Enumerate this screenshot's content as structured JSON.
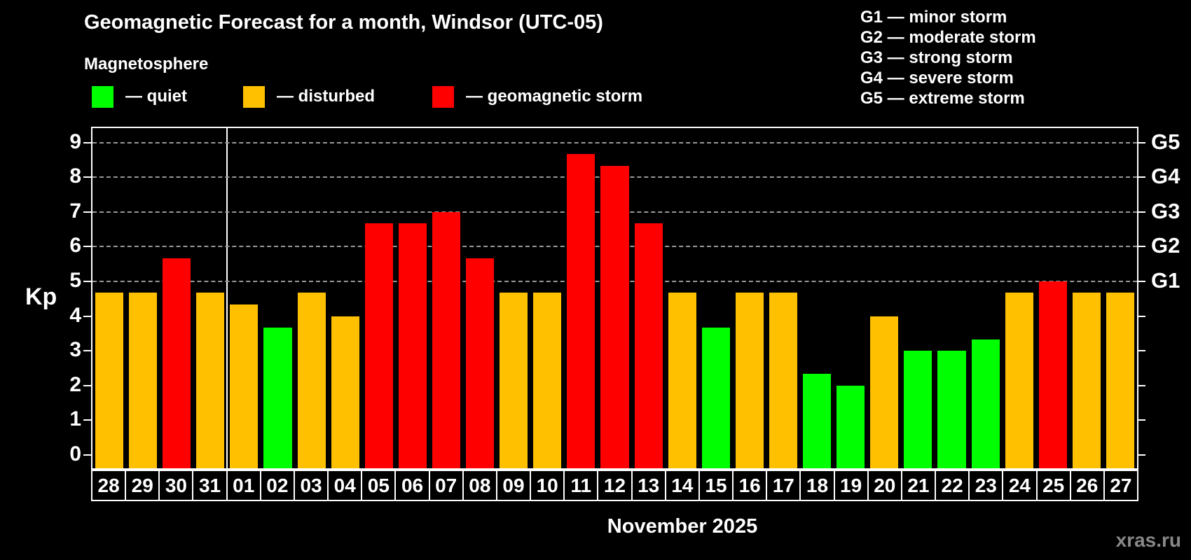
{
  "title": "Geomagnetic Forecast for a month, Windsor (UTC-05)",
  "subtitle": "Magnetosphere",
  "legend": {
    "quiet_label": "— quiet",
    "disturbed_label": "— disturbed",
    "storm_label": "— geomagnetic storm"
  },
  "storm_scale_legend": [
    "G1 — minor storm",
    "G2 — moderate storm",
    "G3 — strong storm",
    "G4 — severe storm",
    "G5 — extreme storm"
  ],
  "axis": {
    "y_label": "Kp",
    "y_ticks": [
      "0",
      "1",
      "2",
      "3",
      "4",
      "5",
      "6",
      "7",
      "8",
      "9"
    ],
    "g_labels": [
      "G1",
      "G2",
      "G3",
      "G4",
      "G5"
    ]
  },
  "month_label": "November 2025",
  "watermark": "xras.ru",
  "colors": {
    "quiet": "#00ff00",
    "disturbed": "#ffc000",
    "storm": "#ff0000",
    "gridline": "#999999"
  },
  "chart_data": {
    "type": "bar",
    "title": "Geomagnetic Forecast for a month, Windsor (UTC-05)",
    "xlabel": "November 2025",
    "ylabel": "Kp",
    "ylim": [
      -0.4,
      9.4
    ],
    "grid_levels": [
      5,
      6,
      7,
      8,
      9
    ],
    "grid_level_names": [
      "G1",
      "G2",
      "G3",
      "G4",
      "G5"
    ],
    "legend_position": "top",
    "month_separator_after_index": 3,
    "categories": [
      "28",
      "29",
      "30",
      "31",
      "01",
      "02",
      "03",
      "04",
      "05",
      "06",
      "07",
      "08",
      "09",
      "10",
      "11",
      "12",
      "13",
      "14",
      "15",
      "16",
      "17",
      "18",
      "19",
      "20",
      "21",
      "22",
      "23",
      "24",
      "25",
      "26",
      "27"
    ],
    "values": [
      4.67,
      4.67,
      5.67,
      4.67,
      4.33,
      3.67,
      4.67,
      4.0,
      6.67,
      6.67,
      7.0,
      5.67,
      4.67,
      4.67,
      8.67,
      8.33,
      6.67,
      4.67,
      3.67,
      4.67,
      4.67,
      2.33,
      2.0,
      4.0,
      3.0,
      3.0,
      3.33,
      4.67,
      5.0,
      4.67,
      4.67
    ],
    "levels": [
      "disturbed",
      "disturbed",
      "storm",
      "disturbed",
      "disturbed",
      "quiet",
      "disturbed",
      "disturbed",
      "storm",
      "storm",
      "storm",
      "storm",
      "disturbed",
      "disturbed",
      "storm",
      "storm",
      "storm",
      "disturbed",
      "quiet",
      "disturbed",
      "disturbed",
      "quiet",
      "quiet",
      "disturbed",
      "quiet",
      "quiet",
      "quiet",
      "disturbed",
      "storm",
      "disturbed",
      "disturbed"
    ]
  }
}
